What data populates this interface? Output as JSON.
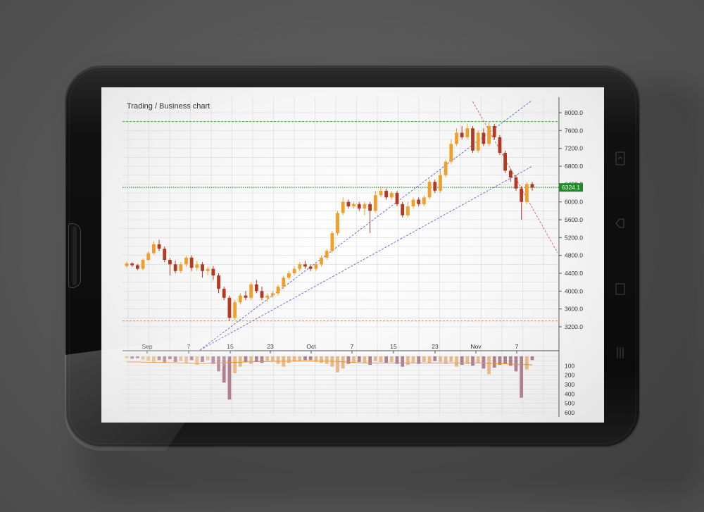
{
  "chart_data": {
    "type": "candlestick",
    "title": "Trading / Business chart",
    "price_axis": {
      "ticks": [
        "8000.0",
        "7600.0",
        "7200.0",
        "6800.0",
        "6400.0",
        "6000.0",
        "5600.0",
        "5200.0",
        "4800.0",
        "4400.0",
        "4000.0",
        "3600.0",
        "3200.0"
      ],
      "range": [
        3200,
        8000
      ]
    },
    "date_axis": {
      "ticks": [
        "Sep",
        "7",
        "15",
        "23",
        "Oct",
        "7",
        "15",
        "23",
        "Nov",
        "7"
      ]
    },
    "current_price_label": "6324.1",
    "current_price_line": 6324.1,
    "resistance_line": 7800,
    "support_line": 3330,
    "candles": [
      [
        4560,
        4620,
        4520,
        4660
      ],
      [
        4620,
        4580,
        4540,
        4650
      ],
      [
        4580,
        4500,
        4470,
        4610
      ],
      [
        4500,
        4700,
        4470,
        4730
      ],
      [
        4700,
        4850,
        4680,
        4890
      ],
      [
        4850,
        5050,
        4820,
        5120
      ],
      [
        5050,
        4950,
        4900,
        5150
      ],
      [
        4950,
        4700,
        4650,
        5000
      ],
      [
        4700,
        4600,
        4350,
        4740
      ],
      [
        4600,
        4450,
        4400,
        4680
      ],
      [
        4450,
        4600,
        4400,
        4650
      ],
      [
        4600,
        4750,
        4550,
        4790
      ],
      [
        4750,
        4520,
        4450,
        4800
      ],
      [
        4520,
        4600,
        4450,
        4680
      ],
      [
        4600,
        4450,
        4300,
        4650
      ],
      [
        4450,
        4500,
        4350,
        4550
      ],
      [
        4500,
        4350,
        4250,
        4560
      ],
      [
        4350,
        4050,
        3950,
        4400
      ],
      [
        4050,
        3850,
        3800,
        4100
      ],
      [
        3850,
        3400,
        3330,
        3900
      ],
      [
        3400,
        3750,
        3350,
        3800
      ],
      [
        3750,
        3900,
        3700,
        3950
      ],
      [
        3900,
        3850,
        3800,
        4000
      ],
      [
        3850,
        4150,
        3800,
        4200
      ],
      [
        4150,
        4000,
        3950,
        4250
      ],
      [
        4000,
        3850,
        3800,
        4100
      ],
      [
        3850,
        3900,
        3750,
        3950
      ],
      [
        3900,
        3950,
        3850,
        4000
      ],
      [
        3950,
        4100,
        3900,
        4150
      ],
      [
        4100,
        4300,
        4050,
        4350
      ],
      [
        4300,
        4400,
        4250,
        4450
      ],
      [
        4400,
        4500,
        4350,
        4560
      ],
      [
        4500,
        4600,
        4450,
        4650
      ],
      [
        4600,
        4550,
        4500,
        4680
      ],
      [
        4550,
        4500,
        4450,
        4600
      ],
      [
        4500,
        4600,
        4450,
        4650
      ],
      [
        4600,
        4750,
        4550,
        4800
      ],
      [
        4750,
        4900,
        4700,
        4950
      ],
      [
        4900,
        5300,
        4850,
        5350
      ],
      [
        5300,
        5750,
        5250,
        5800
      ],
      [
        5750,
        6000,
        5700,
        6100
      ],
      [
        6000,
        5900,
        5850,
        6050
      ],
      [
        5900,
        5950,
        5850,
        6000
      ],
      [
        5950,
        5850,
        5800,
        6000
      ],
      [
        5850,
        5950,
        5700,
        6000
      ],
      [
        5950,
        5800,
        5300,
        6000
      ],
      [
        5800,
        6150,
        5750,
        6250
      ],
      [
        6150,
        6250,
        6100,
        6350
      ],
      [
        6250,
        6100,
        6050,
        6300
      ],
      [
        6100,
        6200,
        6050,
        6250
      ],
      [
        6200,
        5950,
        5900,
        6250
      ],
      [
        5950,
        5700,
        5650,
        6000
      ],
      [
        5700,
        5900,
        5650,
        6000
      ],
      [
        5900,
        6050,
        5850,
        6100
      ],
      [
        6050,
        5950,
        5900,
        6100
      ],
      [
        5950,
        6100,
        5900,
        6150
      ],
      [
        6100,
        6450,
        6050,
        6500
      ],
      [
        6450,
        6250,
        6200,
        6500
      ],
      [
        6250,
        6600,
        6200,
        6700
      ],
      [
        6600,
        6900,
        6550,
        6950
      ],
      [
        6900,
        7300,
        6850,
        7400
      ],
      [
        7300,
        7550,
        7250,
        7650
      ],
      [
        7550,
        7450,
        7400,
        7700
      ],
      [
        7450,
        7650,
        7400,
        7750
      ],
      [
        7650,
        7150,
        7100,
        7700
      ],
      [
        7150,
        7550,
        7100,
        7600
      ],
      [
        7550,
        7300,
        7250,
        7650
      ],
      [
        7300,
        7700,
        7250,
        7800
      ],
      [
        7700,
        7450,
        7400,
        7750
      ],
      [
        7450,
        7100,
        7050,
        7500
      ],
      [
        7100,
        6700,
        6650,
        7150
      ],
      [
        6700,
        6550,
        6450,
        6750
      ],
      [
        6550,
        6300,
        6250,
        6600
      ],
      [
        6300,
        6000,
        5600,
        6350
      ],
      [
        6000,
        6400,
        5950,
        6450
      ],
      [
        6400,
        6320,
        6250,
        6450
      ]
    ],
    "volume_axis": {
      "ticks": [
        "100",
        "200",
        "300",
        "400",
        "500",
        "600"
      ],
      "range": [
        0,
        600
      ]
    },
    "volume": [
      20,
      25,
      20,
      35,
      45,
      60,
      40,
      70,
      30,
      60,
      50,
      70,
      40,
      90,
      60,
      40,
      80,
      160,
      280,
      460,
      180,
      110,
      60,
      80,
      60,
      70,
      45,
      50,
      80,
      110,
      70,
      55,
      50,
      40,
      40,
      60,
      70,
      80,
      110,
      170,
      130,
      80,
      70,
      60,
      70,
      90,
      50,
      60,
      70,
      60,
      80,
      110,
      90,
      70,
      80,
      60,
      70,
      50,
      60,
      80,
      60,
      110,
      90,
      80,
      100,
      70,
      130,
      190,
      120,
      90,
      80,
      100,
      160,
      440,
      140,
      40
    ],
    "volume_average": [
      60,
      60,
      60,
      62,
      63,
      64,
      65,
      66,
      67,
      68,
      70,
      72,
      74,
      76,
      76,
      74,
      72,
      70,
      68,
      66,
      64,
      62,
      60,
      58,
      56,
      55,
      54,
      53,
      52,
      52,
      51,
      50,
      50,
      50,
      50,
      50,
      50,
      51,
      52,
      54,
      58,
      62,
      66,
      68,
      70,
      70,
      70,
      70,
      70,
      70,
      70,
      70,
      70,
      70,
      70,
      70,
      70,
      70,
      70,
      70,
      70,
      70,
      70,
      70,
      70,
      70,
      72,
      74,
      76,
      78,
      80,
      82,
      84,
      86,
      88,
      90
    ]
  },
  "colors": {
    "up_candle": "#f0a02a",
    "down_candle": "#b33a22",
    "grid": "#d8d8d8",
    "trendline": "#4455cc",
    "downtrend": "#d0504a",
    "resistance": "#44aa44",
    "support": "#e8882a",
    "current_price": "#1e8a2a",
    "volume_up": "#e8b888",
    "volume_down": "#b08090",
    "volume_avg": "#e89030"
  },
  "icons": {
    "top": "rotate-icon",
    "middle": "back-icon",
    "bottom": "home-icon",
    "lowest": "menu-icon"
  }
}
